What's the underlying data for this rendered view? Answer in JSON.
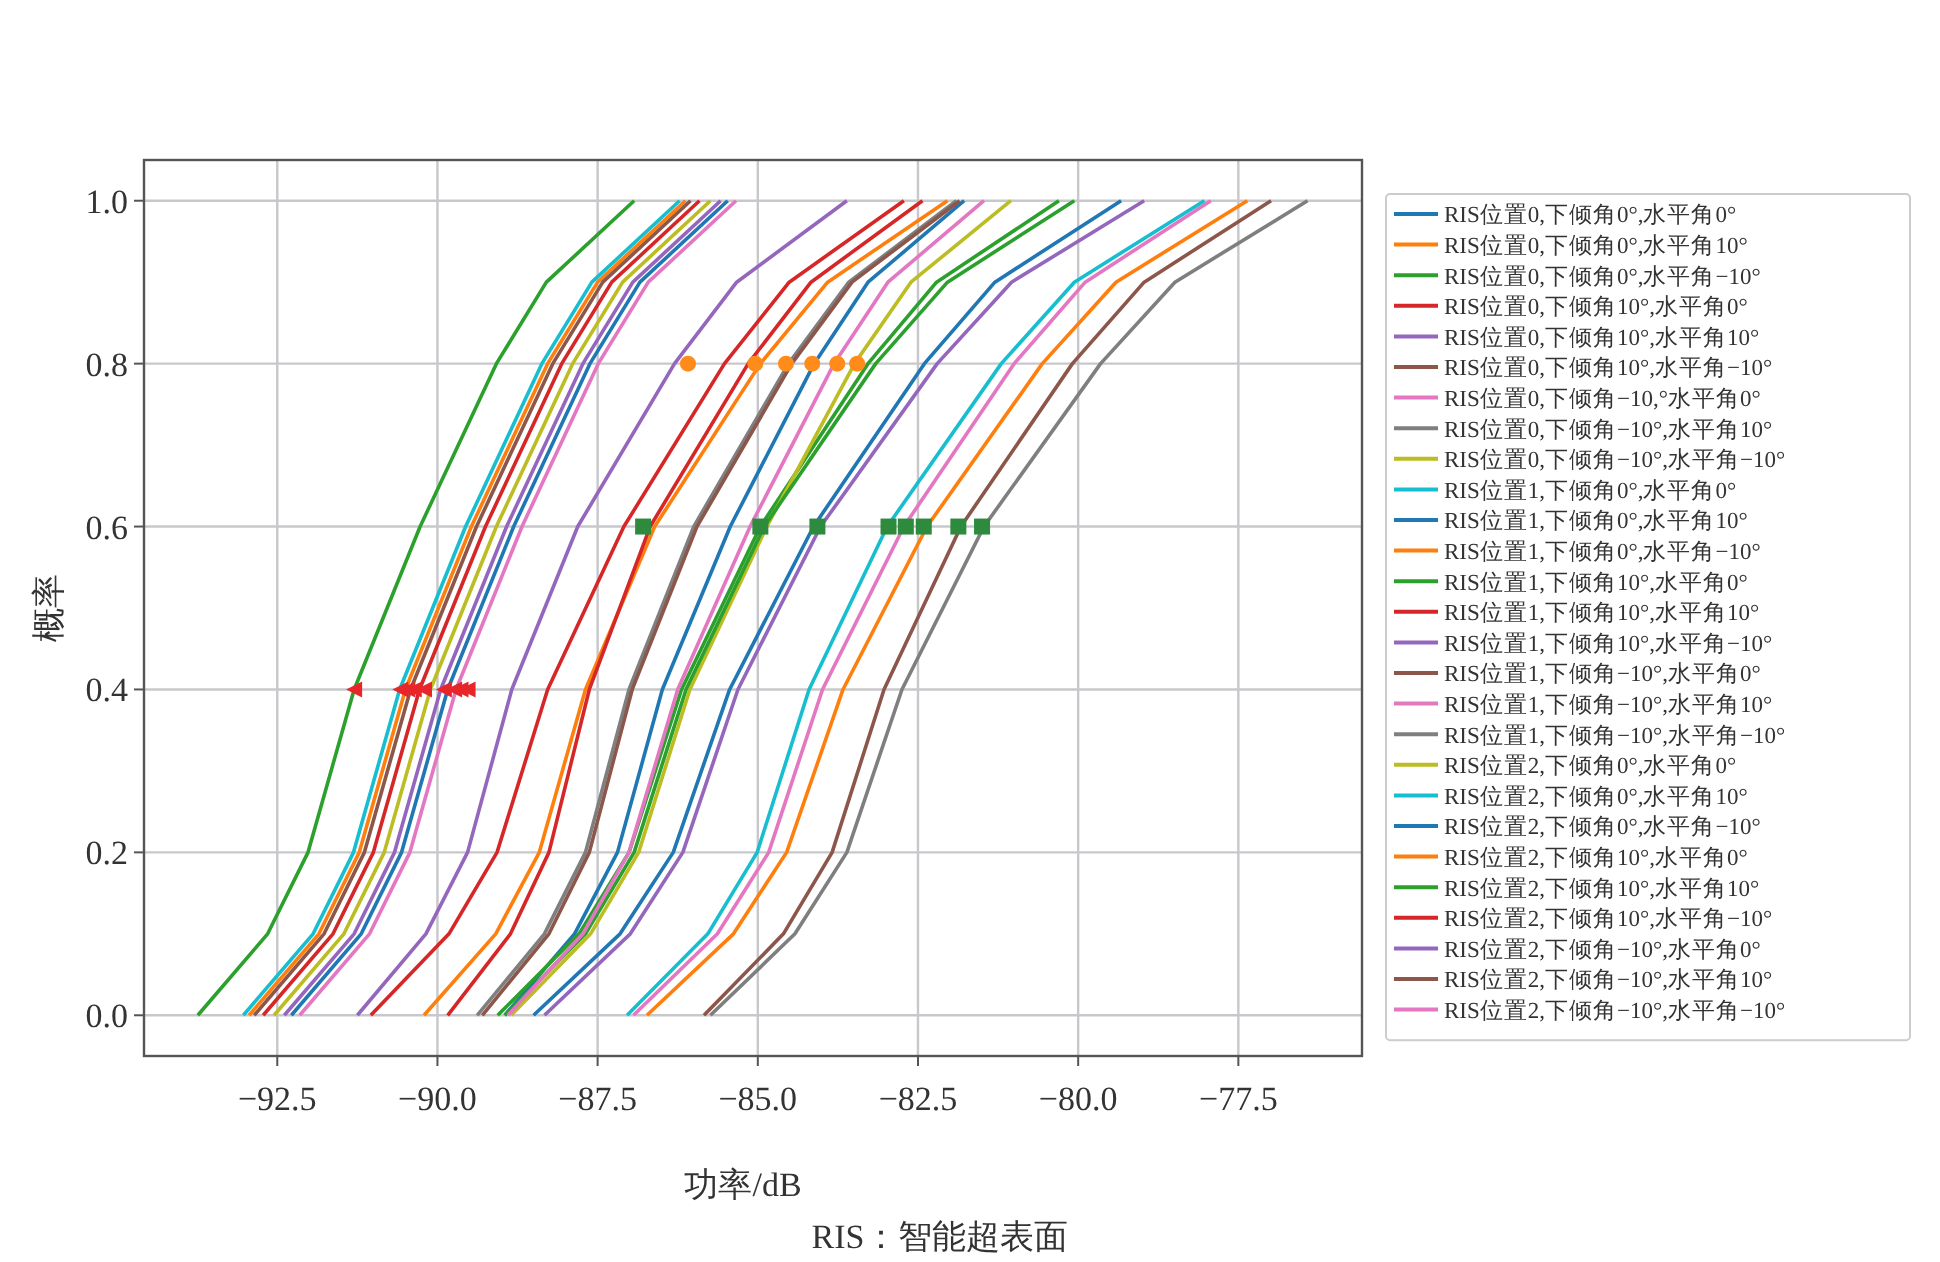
{
  "chart_data": {
    "type": "line",
    "xlabel": "功率/dB",
    "ylabel": "概率",
    "annotations": [
      "RIS：智能超表面"
    ],
    "xlim": [
      -94.58,
      -75.57
    ],
    "ylim": [
      -0.05,
      1.05
    ],
    "xticks": [
      {
        "value": -92.5,
        "label": "−92.5"
      },
      {
        "value": -90,
        "label": "−90.0"
      },
      {
        "value": -87.5,
        "label": "−87.5"
      },
      {
        "value": -85,
        "label": "−85.0"
      },
      {
        "value": -82.5,
        "label": "−82.5"
      },
      {
        "value": -80,
        "label": "−80.0"
      },
      {
        "value": -77.5,
        "label": "−77.5"
      }
    ],
    "yticks": [
      {
        "value": 0,
        "label": "0.0"
      },
      {
        "value": 0.2,
        "label": "0.2"
      },
      {
        "value": 0.4,
        "label": "0.4"
      },
      {
        "value": 0.6,
        "label": "0.6"
      },
      {
        "value": 0.8,
        "label": "0.8"
      },
      {
        "value": 1,
        "label": "1.0"
      }
    ],
    "grid": true,
    "legend": "right",
    "series": [
      {
        "name": "RIS位置0,下倾角0°,水平角0°",
        "color": "#1f77b4",
        "x": [
          -92.28,
          -91.19,
          -90.56,
          -89.84,
          -88.81,
          -87.62,
          -86.84,
          -85.47
        ],
        "values": [
          0,
          0.1,
          0.2,
          0.4,
          0.6,
          0.8,
          0.9,
          1.0
        ]
      },
      {
        "name": "RIS位置0,下倾角0°,水平角10°",
        "color": "#ff7f0e",
        "x": [
          -92.94,
          -91.85,
          -91.22,
          -90.5,
          -89.47,
          -88.28,
          -87.5,
          -86.13
        ],
        "values": [
          0,
          0.1,
          0.2,
          0.4,
          0.6,
          0.8,
          0.9,
          1.0
        ]
      },
      {
        "name": "RIS位置0,下倾角0°,水平角−10°",
        "color": "#2ca02c",
        "x": [
          -93.74,
          -92.65,
          -92.02,
          -91.3,
          -90.27,
          -89.08,
          -88.3,
          -86.93
        ],
        "values": [
          0,
          0.1,
          0.2,
          0.4,
          0.6,
          0.8,
          0.9,
          1.0
        ]
      },
      {
        "name": "RIS位置0,下倾角10°,水平角0°",
        "color": "#d62728",
        "x": [
          -92.72,
          -91.63,
          -91.0,
          -90.28,
          -89.25,
          -88.06,
          -87.28,
          -85.91
        ],
        "values": [
          0,
          0.1,
          0.2,
          0.4,
          0.6,
          0.8,
          0.9,
          1.0
        ]
      },
      {
        "name": "RIS位置0,下倾角10°,水平角10°",
        "color": "#9467bd",
        "x": [
          -92.39,
          -91.3,
          -90.67,
          -89.95,
          -88.92,
          -87.73,
          -86.95,
          -85.58
        ],
        "values": [
          0,
          0.1,
          0.2,
          0.4,
          0.6,
          0.8,
          0.9,
          1.0
        ]
      },
      {
        "name": "RIS位置0,下倾角10°,水平角−10°",
        "color": "#8c564b",
        "x": [
          -92.86,
          -91.77,
          -91.14,
          -90.42,
          -89.39,
          -88.2,
          -87.42,
          -86.05
        ],
        "values": [
          0,
          0.1,
          0.2,
          0.4,
          0.6,
          0.8,
          0.9,
          1.0
        ]
      },
      {
        "name": "RIS位置0,下倾角−10,°水平角0°",
        "color": "#e377c2",
        "x": [
          -92.15,
          -91.06,
          -90.43,
          -89.71,
          -88.68,
          -87.49,
          -86.71,
          -85.34
        ],
        "values": [
          0,
          0.1,
          0.2,
          0.4,
          0.6,
          0.8,
          0.9,
          1.0
        ]
      },
      {
        "name": "RIS位置0,下倾角−10°,水平角10°",
        "color": "#7f7f7f",
        "x": [
          -89.38,
          -88.33,
          -87.69,
          -87.01,
          -86.0,
          -84.52,
          -83.58,
          -81.9
        ],
        "values": [
          0,
          0.1,
          0.2,
          0.4,
          0.6,
          0.8,
          0.9,
          1.0
        ]
      },
      {
        "name": "RIS位置0,下倾角−10°,水平角−10°",
        "color": "#bcbd22",
        "x": [
          -92.55,
          -91.46,
          -90.83,
          -90.11,
          -89.08,
          -87.89,
          -87.11,
          -85.74
        ],
        "values": [
          0,
          0.1,
          0.2,
          0.4,
          0.6,
          0.8,
          0.9,
          1.0
        ]
      },
      {
        "name": "RIS位置1,下倾角0°,水平角0°",
        "color": "#17becf",
        "x": [
          -93.03,
          -91.94,
          -91.31,
          -90.59,
          -89.56,
          -88.37,
          -87.59,
          -86.22
        ],
        "values": [
          0,
          0.1,
          0.2,
          0.4,
          0.6,
          0.8,
          0.9,
          1.0
        ]
      },
      {
        "name": "RIS位置1,下倾角0°,水平角10°",
        "color": "#1f77b4",
        "x": [
          -88.95,
          -87.86,
          -87.19,
          -86.49,
          -85.43,
          -84.12,
          -83.28,
          -81.78
        ],
        "values": [
          0,
          0.1,
          0.2,
          0.4,
          0.6,
          0.8,
          0.9,
          1.0
        ]
      },
      {
        "name": "RIS位置1,下倾角0°,水平角−10°",
        "color": "#ff7f0e",
        "x": [
          -86.73,
          -85.38,
          -84.55,
          -83.67,
          -82.36,
          -80.56,
          -79.41,
          -77.36
        ],
        "values": [
          0,
          0.1,
          0.2,
          0.4,
          0.6,
          0.8,
          0.9,
          1.0
        ]
      },
      {
        "name": "RIS位置1,下倾角10°,水平角0°",
        "color": "#2ca02c",
        "x": [
          -89.06,
          -87.79,
          -87.01,
          -86.19,
          -84.96,
          -83.28,
          -82.21,
          -80.3
        ],
        "values": [
          0,
          0.1,
          0.2,
          0.4,
          0.6,
          0.8,
          0.9,
          1.0
        ]
      },
      {
        "name": "RIS位置1,下倾角10°,水平角10°",
        "color": "#d62728",
        "x": [
          -91.04,
          -89.82,
          -89.07,
          -88.28,
          -87.09,
          -85.52,
          -84.51,
          -82.72
        ],
        "values": [
          0,
          0.1,
          0.2,
          0.4,
          0.6,
          0.8,
          0.9,
          1.0
        ]
      },
      {
        "name": "RIS位置1,下倾角10°,水平角−10°",
        "color": "#9467bd",
        "x": [
          -91.25,
          -90.18,
          -89.53,
          -88.84,
          -87.81,
          -86.3,
          -85.33,
          -83.61
        ],
        "values": [
          0,
          0.1,
          0.2,
          0.4,
          0.6,
          0.8,
          0.9,
          1.0
        ]
      },
      {
        "name": "RIS位置1,下倾角−10°,水平角0°",
        "color": "#8c564b",
        "x": [
          -85.84,
          -84.6,
          -83.84,
          -83.03,
          -81.83,
          -80.09,
          -78.97,
          -76.99
        ],
        "values": [
          0,
          0.1,
          0.2,
          0.4,
          0.6,
          0.8,
          0.9,
          1.0
        ]
      },
      {
        "name": "RIS位置1,下倾角−10°,水平角10°",
        "color": "#e377c2",
        "x": [
          -86.94,
          -85.63,
          -84.83,
          -83.99,
          -82.72,
          -81.0,
          -79.89,
          -77.93
        ],
        "values": [
          0,
          0.1,
          0.2,
          0.4,
          0.6,
          0.8,
          0.9,
          1.0
        ]
      },
      {
        "name": "RIS位置1,下倾角−10°,水平角−10°",
        "color": "#7f7f7f",
        "x": [
          -85.74,
          -84.42,
          -83.61,
          -82.75,
          -81.47,
          -79.65,
          -78.49,
          -76.42
        ],
        "values": [
          0,
          0.1,
          0.2,
          0.4,
          0.6,
          0.8,
          0.9,
          1.0
        ]
      },
      {
        "name": "RIS位置2,下倾角0°,水平角0°",
        "color": "#bcbd22",
        "x": [
          -88.85,
          -87.61,
          -86.86,
          -86.06,
          -84.86,
          -83.49,
          -82.61,
          -81.05
        ],
        "values": [
          0,
          0.1,
          0.2,
          0.4,
          0.6,
          0.8,
          0.9,
          1.0
        ]
      },
      {
        "name": "RIS位置2,下倾角0°,水平角10°",
        "color": "#17becf",
        "x": [
          -87.04,
          -85.78,
          -85.01,
          -84.2,
          -82.98,
          -81.2,
          -80.06,
          -78.03
        ],
        "values": [
          0,
          0.1,
          0.2,
          0.4,
          0.6,
          0.8,
          0.9,
          1.0
        ]
      },
      {
        "name": "RIS位置2,下倾角0°,水平角−10°",
        "color": "#1f77b4",
        "x": [
          -88.5,
          -87.15,
          -86.32,
          -85.44,
          -84.13,
          -82.4,
          -81.3,
          -79.33
        ],
        "values": [
          0,
          0.1,
          0.2,
          0.4,
          0.6,
          0.8,
          0.9,
          1.0
        ]
      },
      {
        "name": "RIS位置2,下倾角10°,水平角0°",
        "color": "#ff7f0e",
        "x": [
          -90.21,
          -89.09,
          -88.41,
          -87.69,
          -86.61,
          -84.96,
          -83.91,
          -82.04
        ],
        "values": [
          0,
          0.1,
          0.2,
          0.4,
          0.6,
          0.8,
          0.9,
          1.0
        ]
      },
      {
        "name": "RIS位置2,下倾角10°,水平角10°",
        "color": "#2ca02c",
        "x": [
          -88.95,
          -87.69,
          -86.93,
          -86.12,
          -84.9,
          -83.16,
          -82.04,
          -80.06
        ],
        "values": [
          0,
          0.1,
          0.2,
          0.4,
          0.6,
          0.8,
          0.9,
          1.0
        ]
      },
      {
        "name": "RIS位置2,下倾角10°,水平角−10°",
        "color": "#d62728",
        "x": [
          -89.84,
          -88.86,
          -88.26,
          -87.63,
          -86.68,
          -85.15,
          -84.17,
          -82.43
        ],
        "values": [
          0,
          0.1,
          0.2,
          0.4,
          0.6,
          0.8,
          0.9,
          1.0
        ]
      },
      {
        "name": "RIS位置2,下倾角−10°,水平角0°",
        "color": "#9467bd",
        "x": [
          -88.33,
          -86.99,
          -86.17,
          -85.31,
          -84.02,
          -82.2,
          -81.04,
          -78.97
        ],
        "values": [
          0,
          0.1,
          0.2,
          0.4,
          0.6,
          0.8,
          0.9,
          1.0
        ]
      },
      {
        "name": "RIS位置2,下倾角−10°,水平角10°",
        "color": "#8c564b",
        "x": [
          -89.3,
          -88.26,
          -87.63,
          -86.96,
          -85.95,
          -84.47,
          -83.53,
          -81.85
        ],
        "values": [
          0,
          0.1,
          0.2,
          0.4,
          0.6,
          0.8,
          0.9,
          1.0
        ]
      },
      {
        "name": "RIS位置2,下倾角−10°,水平角−10°",
        "color": "#e377c2",
        "x": [
          -88.9,
          -87.73,
          -87.01,
          -86.25,
          -85.12,
          -83.81,
          -82.97,
          -81.47
        ],
        "values": [
          0,
          0.1,
          0.2,
          0.4,
          0.6,
          0.8,
          0.9,
          1.0
        ]
      },
      {
        "type": "scatter",
        "marker": "triangle",
        "color": "#e8262a",
        "x": [
          -91.3,
          -90.58,
          -90.47,
          -90.37,
          -90.21,
          -89.9,
          -89.74,
          -89.64,
          -89.53
        ],
        "values": [
          0.4,
          0.4,
          0.4,
          0.4,
          0.4,
          0.4,
          0.4,
          0.4,
          0.4
        ]
      },
      {
        "type": "scatter",
        "marker": "circle",
        "color": "#ff8c1a",
        "x": [
          -86.09,
          -85.04,
          -84.56,
          -84.15,
          -83.76,
          -83.45
        ],
        "values": [
          0.8,
          0.8,
          0.8,
          0.8,
          0.8,
          0.8
        ]
      },
      {
        "type": "scatter",
        "marker": "square",
        "color": "#2e8b3e",
        "x": [
          -86.79,
          -84.96,
          -84.07,
          -82.96,
          -82.69,
          -82.41,
          -81.87,
          -81.5
        ],
        "values": [
          0.6,
          0.6,
          0.6,
          0.6,
          0.6,
          0.6,
          0.6,
          0.6
        ]
      }
    ]
  }
}
